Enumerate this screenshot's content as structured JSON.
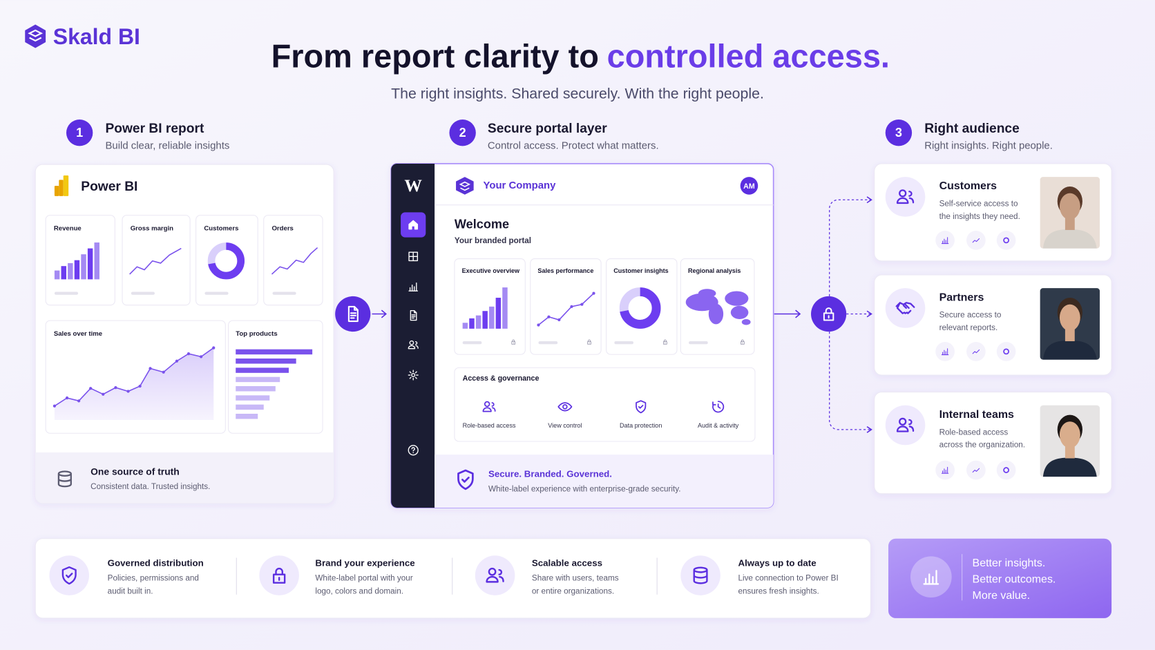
{
  "brand": "Skald BI",
  "header": {
    "title": "From report clarity to",
    "title_accent": "controlled access.",
    "subtitle": "The right insights. Shared securely. With the right people."
  },
  "steps": [
    {
      "number": "1",
      "title": "Power BI report",
      "subtitle": "Build clear, reliable insights"
    },
    {
      "number": "2",
      "title": "Secure portal layer",
      "subtitle": "Control access. Protect what matters."
    },
    {
      "number": "3",
      "title": "Right audience",
      "subtitle": "Right insights. Right people."
    }
  ],
  "report": {
    "app": "Power BI",
    "kpis": [
      "Revenue",
      "Gross margin",
      "Customers",
      "Orders"
    ],
    "panels": [
      "Sales over time",
      "Top products"
    ],
    "footer": {
      "title": "One source of truth",
      "text": "Consistent data. Trusted insights."
    }
  },
  "portal": {
    "logo": "W",
    "company": "Your Company",
    "avatar": "AM",
    "welcome": "Welcome",
    "subtitle": "Your branded portal",
    "reports": [
      "Executive overview",
      "Sales performance",
      "Customer insights",
      "Regional analysis"
    ],
    "governance": {
      "title": "Access & governance",
      "items": [
        "Role-based access",
        "View control",
        "Data protection",
        "Audit & activity"
      ]
    },
    "footer": {
      "title": "Secure. Branded. Governed.",
      "text": "White-label experience with enterprise-grade security."
    }
  },
  "audiences": [
    {
      "name": "Customers",
      "description": [
        "Self-service access to",
        "the insights they need."
      ]
    },
    {
      "name": "Partners",
      "description": [
        "Secure access to",
        "relevant reports."
      ]
    },
    {
      "name": "Internal teams",
      "description": [
        "Role-based access",
        "across the organization."
      ]
    }
  ],
  "features": [
    {
      "title": "Governed distribution",
      "description": [
        "Policies, permissions and",
        "audit built in."
      ]
    },
    {
      "title": "Brand your experience",
      "description": [
        "White-label portal with your",
        "logo, colors and domain."
      ]
    },
    {
      "title": "Scalable access",
      "description": [
        "Share with users, teams",
        "or entire organizations."
      ]
    },
    {
      "title": "Always up to date",
      "description": [
        "Live connection to Power BI",
        "ensures fresh insights."
      ]
    }
  ],
  "closing": [
    "Better insights.",
    "Better outcomes.",
    "More value."
  ]
}
